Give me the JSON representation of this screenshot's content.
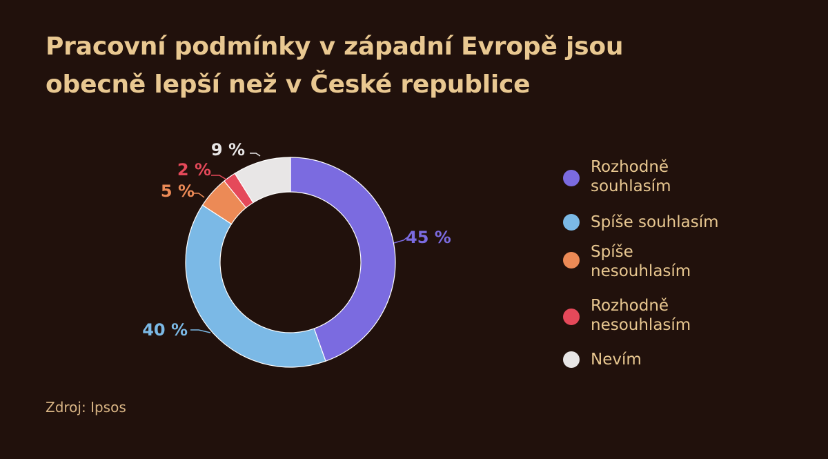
{
  "title": {
    "line1": "Pracovní podmínky v západní Evropě jsou",
    "line2": "obecně lepší než v České republice"
  },
  "source": "Zdroj: Ipsos",
  "chart_data": {
    "type": "pie",
    "donut": true,
    "legend_position": "right",
    "slices": [
      {
        "label": "Rozhodně souhlasím",
        "value": 45,
        "value_label": "45 %",
        "color": "#7b6be0"
      },
      {
        "label": "Spíše souhlasím",
        "value": 40,
        "value_label": "40 %",
        "color": "#7bb9e6"
      },
      {
        "label": "Spíše nesouhlasím",
        "value": 5,
        "value_label": "5 %",
        "color": "#ec8a56"
      },
      {
        "label": "Rozhodně nesouhlasím",
        "value": 2,
        "value_label": "2 %",
        "color": "#e5495a"
      },
      {
        "label": "Nevím",
        "value": 9,
        "value_label": "9 %",
        "color": "#e8e6e6"
      }
    ]
  }
}
